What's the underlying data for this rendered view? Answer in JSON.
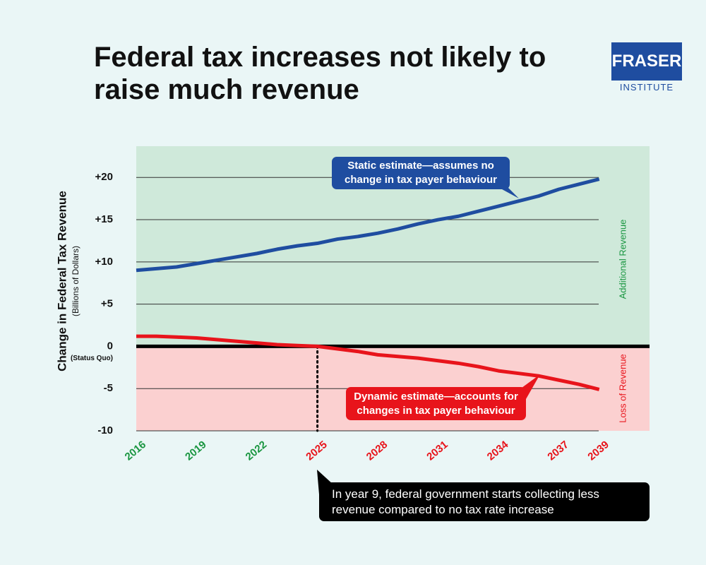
{
  "chart_data": {
    "type": "line",
    "title": "Federal tax increases not likely to raise much revenue",
    "logo": [
      "FRASER",
      "INSTITUTE"
    ],
    "y_label": "Change in Federal Tax Revenue",
    "y_sublabel": "(Billions of Dollars)",
    "zero_note": "(Status Quo)",
    "region_labels": [
      "Additional Revenue",
      "Loss of Revenue"
    ],
    "region_colors": [
      "#cfe9da",
      "#fbd0d0"
    ],
    "x": [
      2016,
      2017,
      2018,
      2019,
      2020,
      2021,
      2022,
      2023,
      2024,
      2025,
      2026,
      2027,
      2028,
      2029,
      2030,
      2031,
      2032,
      2033,
      2034,
      2035,
      2036,
      2037,
      2038,
      2039
    ],
    "series": [
      {
        "name": "Static estimate—assumes no change in tax payer behaviour",
        "color": "#1f4da0",
        "values": [
          9.0,
          9.2,
          9.4,
          9.8,
          10.2,
          10.6,
          11.0,
          11.5,
          11.9,
          12.2,
          12.7,
          13.0,
          13.4,
          13.9,
          14.5,
          15.0,
          15.4,
          16.0,
          16.6,
          17.2,
          17.8,
          18.6,
          19.2,
          19.8
        ]
      },
      {
        "name": "Dynamic estimate—accounts for changes in tax payer behaviour",
        "color": "#e8141b",
        "values": [
          1.2,
          1.2,
          1.1,
          1.0,
          0.8,
          0.6,
          0.4,
          0.2,
          0.1,
          0.0,
          -0.3,
          -0.6,
          -1.0,
          -1.2,
          -1.4,
          -1.7,
          -2.0,
          -2.4,
          -2.9,
          -3.2,
          -3.5,
          -4.0,
          -4.5,
          -5.1
        ]
      }
    ],
    "annotation": "In year 9, federal government starts collecting less revenue compared to no tax rate increase",
    "xlim": [
      2016,
      2041.5
    ],
    "xticks": [
      2016,
      2019,
      2022,
      2025,
      2028,
      2031,
      2034,
      2037,
      2039
    ],
    "xtick_colors": [
      "#1a9641",
      "#1a9641",
      "#1a9641",
      "#e8141b",
      "#e8141b",
      "#e8141b",
      "#e8141b",
      "#e8141b",
      "#e8141b"
    ],
    "ylim": [
      -10,
      23.7
    ],
    "yticks": [
      {
        "value": 20,
        "label": "+20"
      },
      {
        "value": 15,
        "label": "+15"
      },
      {
        "value": 10,
        "label": "+10"
      },
      {
        "value": 5,
        "label": "+5"
      },
      0,
      -5,
      -10
    ],
    "grid": true
  }
}
